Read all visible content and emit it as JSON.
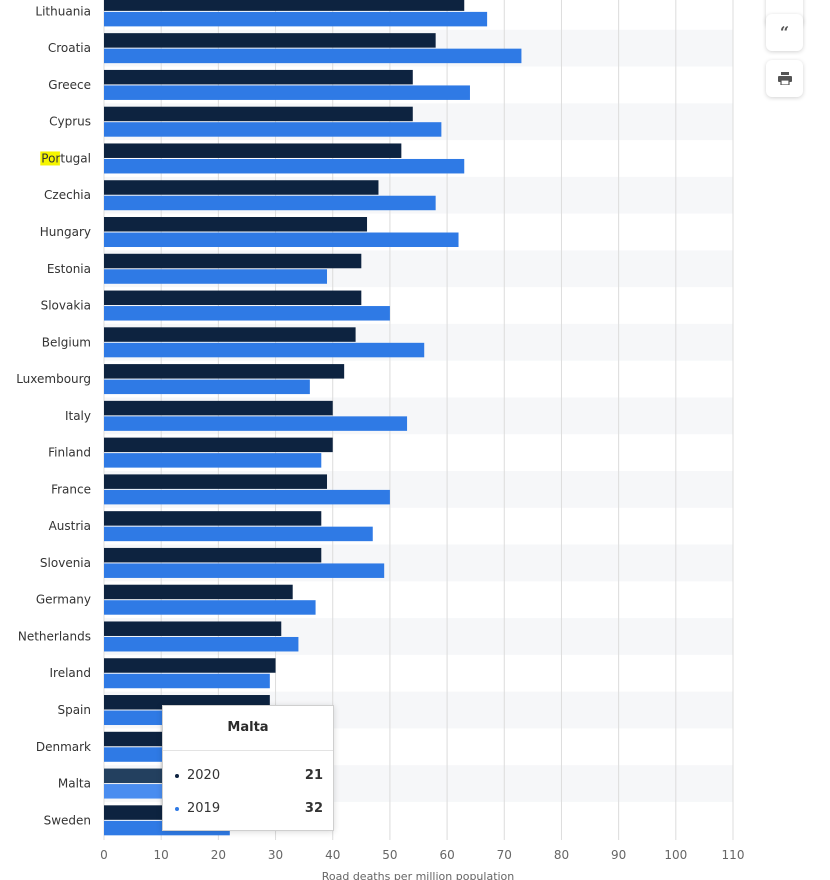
{
  "chart_data": {
    "type": "bar",
    "orientation": "horizontal",
    "categories": [
      "Lithuania",
      "Croatia",
      "Greece",
      "Cyprus",
      "Portugal",
      "Czechia",
      "Hungary",
      "Estonia",
      "Slovakia",
      "Belgium",
      "Luxembourg",
      "Italy",
      "Finland",
      "France",
      "Austria",
      "Slovenia",
      "Germany",
      "Netherlands",
      "Ireland",
      "Spain",
      "Denmark",
      "Malta",
      "Sweden"
    ],
    "series": [
      {
        "name": "2020",
        "color": "#0d2340",
        "values": [
          63,
          58,
          54,
          54,
          52,
          48,
          46,
          45,
          45,
          44,
          42,
          40,
          40,
          39,
          38,
          38,
          33,
          31,
          30,
          29,
          27,
          21,
          18
        ]
      },
      {
        "name": "2019",
        "color": "#2f7ae5",
        "values": [
          67,
          73,
          64,
          59,
          63,
          58,
          62,
          39,
          50,
          56,
          36,
          53,
          38,
          50,
          47,
          49,
          37,
          34,
          29,
          30,
          35,
          32,
          22
        ]
      }
    ],
    "xlabel": "Road deaths per million population",
    "xlim": [
      0,
      110
    ],
    "xticks": [
      "0",
      "10",
      "20",
      "30",
      "40",
      "50",
      "60",
      "70",
      "80",
      "90",
      "100",
      "110"
    ],
    "grid": true,
    "highlight_category": "Portugal",
    "highlight_text": "Por",
    "hovered_category": "Malta",
    "hover_color": "#4a8df0"
  },
  "tooltip": {
    "title": "Malta",
    "rows": [
      {
        "label": "2020",
        "value": "21",
        "color": "#0d2340"
      },
      {
        "label": "2019",
        "value": "32",
        "color": "#2f7ae5"
      }
    ]
  },
  "toolbar": {
    "quote_icon": "quote-icon",
    "print_icon": "print-icon"
  }
}
